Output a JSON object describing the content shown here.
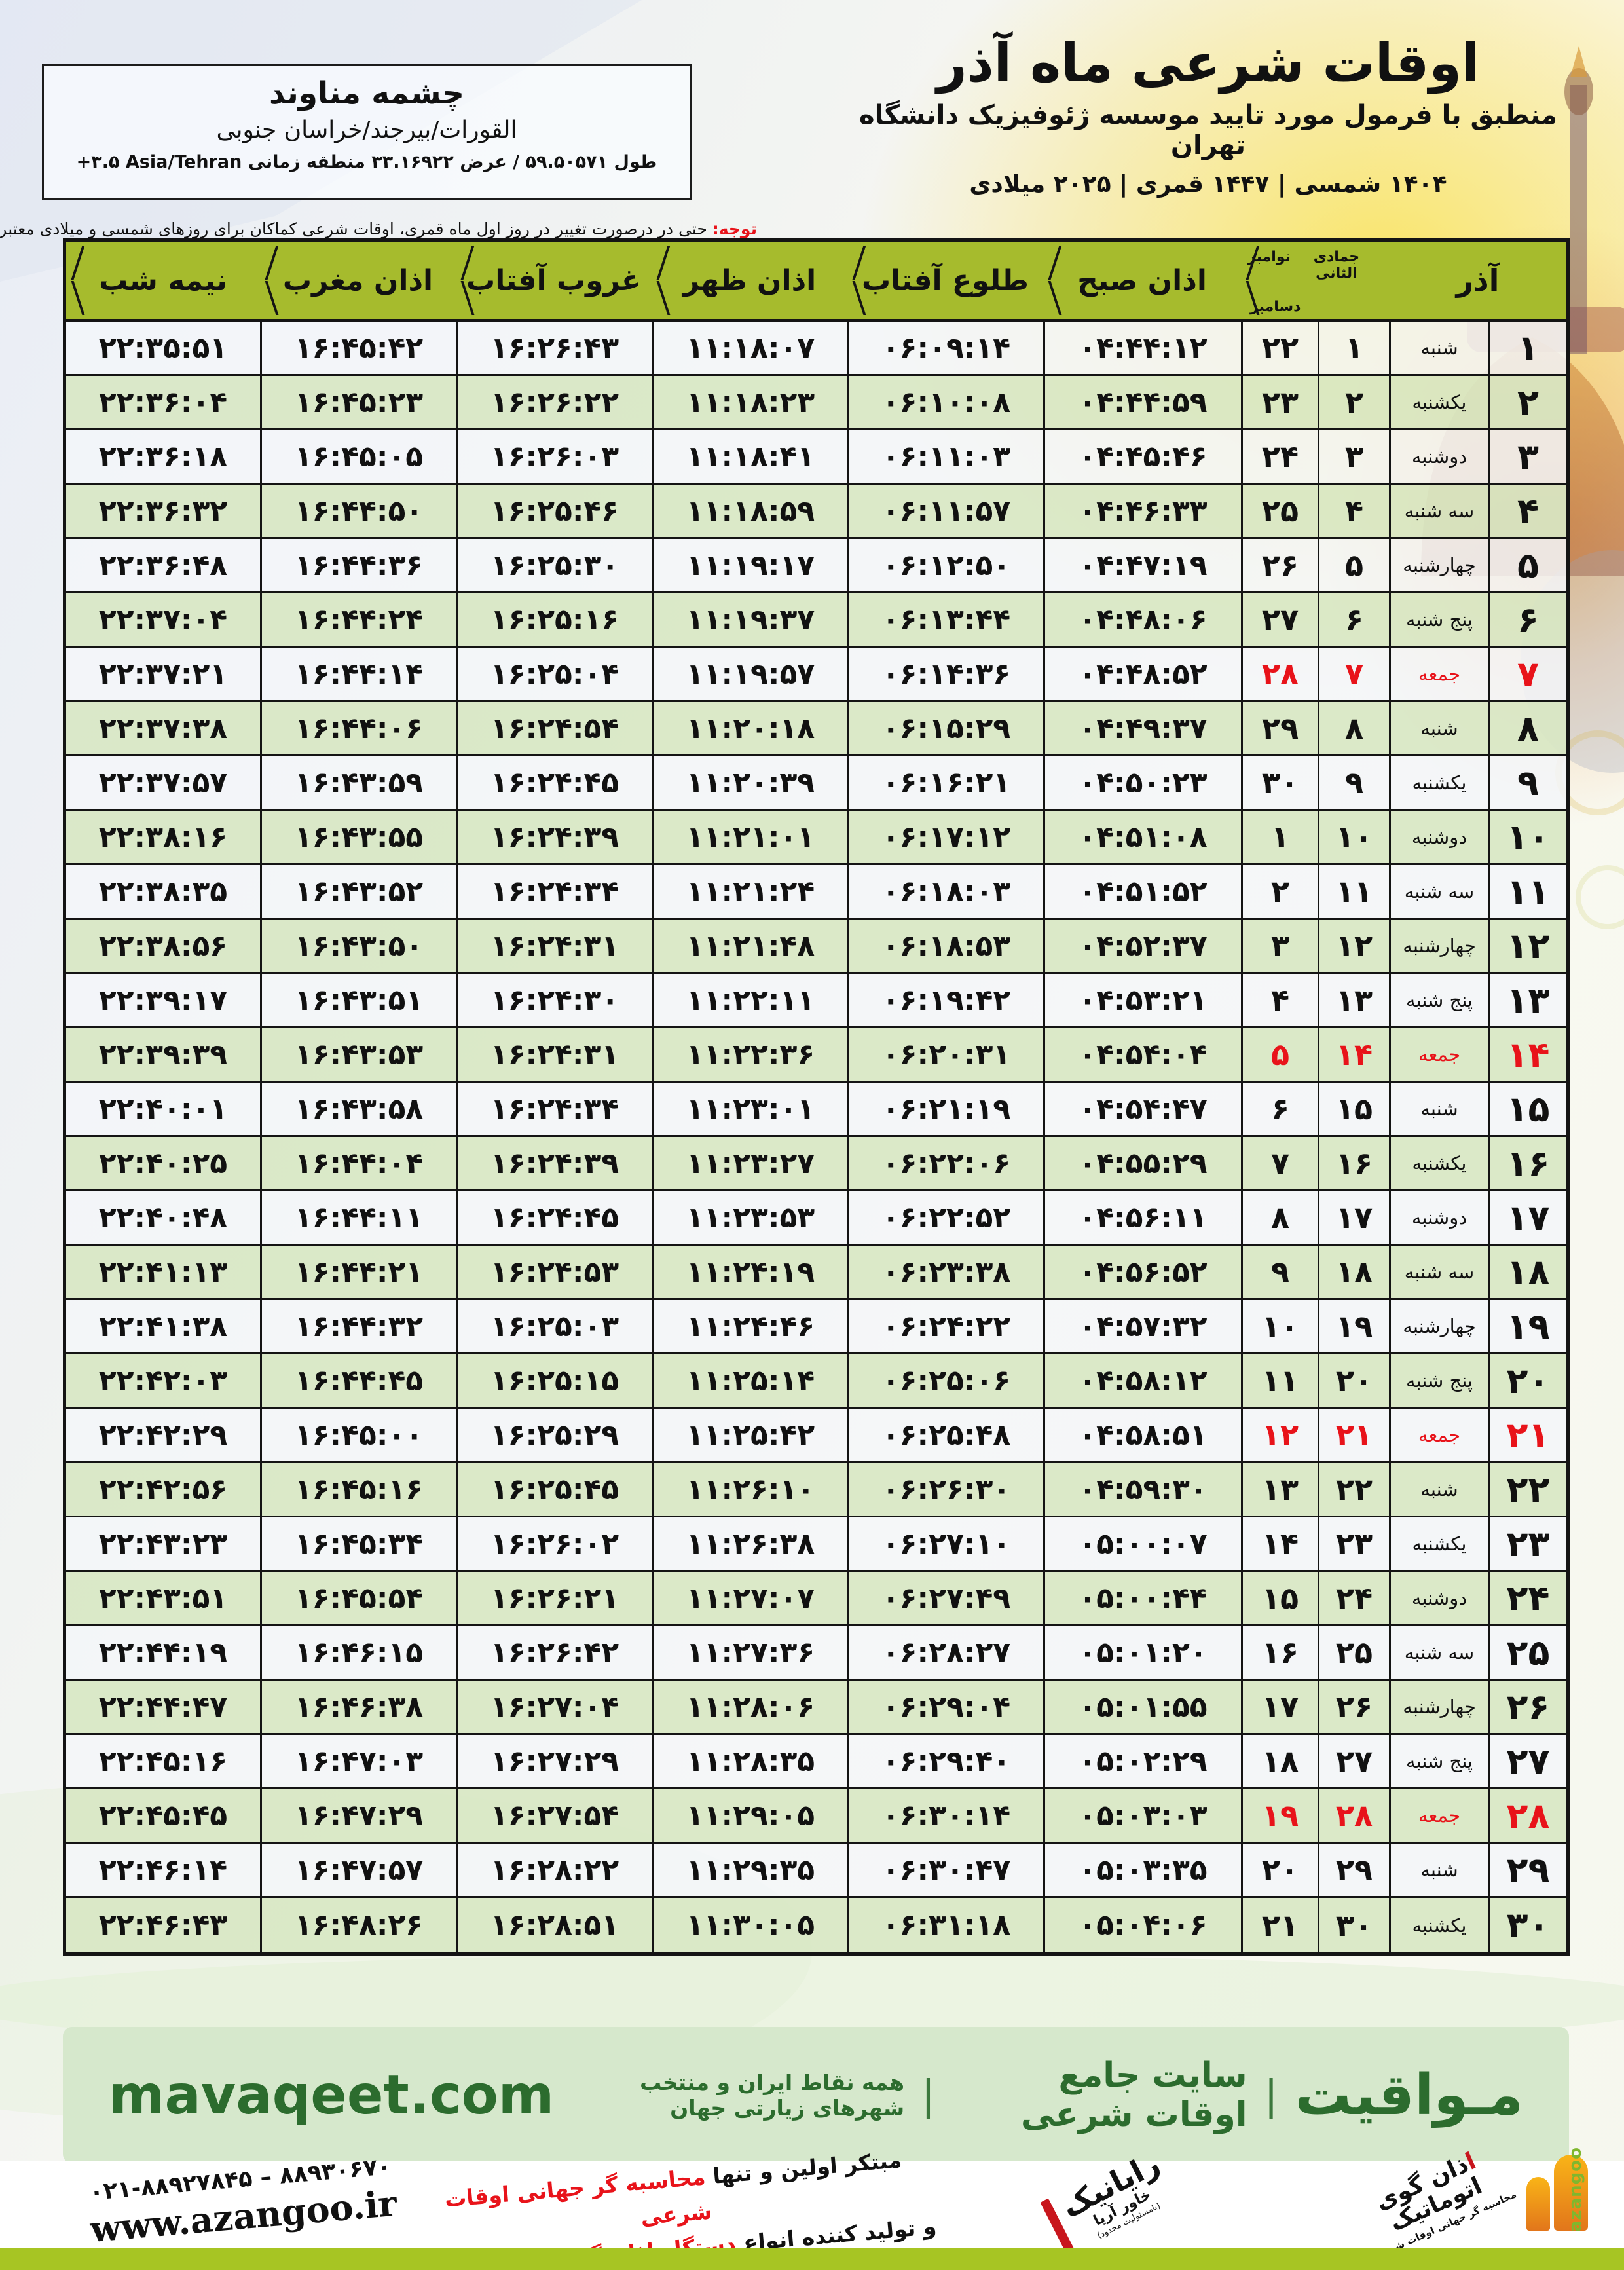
{
  "colors": {
    "red": "#e8131a",
    "olive": "#a6bb2d",
    "band_bg": "#d6e8cc",
    "band_text": "#2c6c2e",
    "bottom_band": "#a7c523",
    "row_green": "#d9e8c7",
    "border": "#141414"
  },
  "location_card": {
    "name": "چشمه مناوند",
    "region": "القورات/بیرجند/خراسان جنوبی",
    "coords": "طول ۵۹.۵۰۵۷۱ / عرض ۳۳.۱۶۹۲۲ منطقه زمانی ‎+۳.۵‎ Asia/Tehran"
  },
  "header": {
    "title": "اوقات شرعی ماه آذر",
    "subtitle": "منطبق با فرمول مورد تایید موسسه ژئوفیزیک دانشگاه تهران",
    "years": "۱۴۰۴ شمسی | ۱۴۴۷ قمری | ۲۰۲۵ میلادی"
  },
  "note": {
    "label": "توجه:",
    "text": " حتی در درصورت تغییر در روز اول ماه قمری، اوقات شرعی کماکان برای روزهای شمسی و میلادی معتبر است."
  },
  "table": {
    "headers": {
      "day": "آذر",
      "hijri_month": "جمادی الثانی",
      "greg_month_top": "نوامبر",
      "greg_month_bottom": "دسامبر",
      "fajr": "اذان صبح",
      "sunrise": "طلوع آفتاب",
      "dhuhr": "اذان ظهر",
      "sunset": "غروب آفتاب",
      "maghrib": "اذان مغرب",
      "midnight": "نیمه شب"
    },
    "rows": [
      {
        "day": "۱",
        "weekday": "شنبه",
        "hijri": "۱",
        "greg": "۲۲",
        "fajr": "۰۴:۴۴:۱۲",
        "sunrise": "۰۶:۰۹:۱۴",
        "dhuhr": "۱۱:۱۸:۰۷",
        "sunset": "۱۶:۲۶:۴۳",
        "maghrib": "۱۶:۴۵:۴۲",
        "midnight": "۲۲:۳۵:۵۱",
        "friday": false
      },
      {
        "day": "۲",
        "weekday": "یکشنبه",
        "hijri": "۲",
        "greg": "۲۳",
        "fajr": "۰۴:۴۴:۵۹",
        "sunrise": "۰۶:۱۰:۰۸",
        "dhuhr": "۱۱:۱۸:۲۳",
        "sunset": "۱۶:۲۶:۲۲",
        "maghrib": "۱۶:۴۵:۲۳",
        "midnight": "۲۲:۳۶:۰۴",
        "friday": false
      },
      {
        "day": "۳",
        "weekday": "دوشنبه",
        "hijri": "۳",
        "greg": "۲۴",
        "fajr": "۰۴:۴۵:۴۶",
        "sunrise": "۰۶:۱۱:۰۳",
        "dhuhr": "۱۱:۱۸:۴۱",
        "sunset": "۱۶:۲۶:۰۳",
        "maghrib": "۱۶:۴۵:۰۵",
        "midnight": "۲۲:۳۶:۱۸",
        "friday": false
      },
      {
        "day": "۴",
        "weekday": "سه شنبه",
        "hijri": "۴",
        "greg": "۲۵",
        "fajr": "۰۴:۴۶:۳۳",
        "sunrise": "۰۶:۱۱:۵۷",
        "dhuhr": "۱۱:۱۸:۵۹",
        "sunset": "۱۶:۲۵:۴۶",
        "maghrib": "۱۶:۴۴:۵۰",
        "midnight": "۲۲:۳۶:۳۲",
        "friday": false
      },
      {
        "day": "۵",
        "weekday": "چهارشنبه",
        "hijri": "۵",
        "greg": "۲۶",
        "fajr": "۰۴:۴۷:۱۹",
        "sunrise": "۰۶:۱۲:۵۰",
        "dhuhr": "۱۱:۱۹:۱۷",
        "sunset": "۱۶:۲۵:۳۰",
        "maghrib": "۱۶:۴۴:۳۶",
        "midnight": "۲۲:۳۶:۴۸",
        "friday": false
      },
      {
        "day": "۶",
        "weekday": "پنج شنبه",
        "hijri": "۶",
        "greg": "۲۷",
        "fajr": "۰۴:۴۸:۰۶",
        "sunrise": "۰۶:۱۳:۴۴",
        "dhuhr": "۱۱:۱۹:۳۷",
        "sunset": "۱۶:۲۵:۱۶",
        "maghrib": "۱۶:۴۴:۲۴",
        "midnight": "۲۲:۳۷:۰۴",
        "friday": false
      },
      {
        "day": "۷",
        "weekday": "جمعه",
        "hijri": "۷",
        "greg": "۲۸",
        "fajr": "۰۴:۴۸:۵۲",
        "sunrise": "۰۶:۱۴:۳۶",
        "dhuhr": "۱۱:۱۹:۵۷",
        "sunset": "۱۶:۲۵:۰۴",
        "maghrib": "۱۶:۴۴:۱۴",
        "midnight": "۲۲:۳۷:۲۱",
        "friday": true
      },
      {
        "day": "۸",
        "weekday": "شنبه",
        "hijri": "۸",
        "greg": "۲۹",
        "fajr": "۰۴:۴۹:۳۷",
        "sunrise": "۰۶:۱۵:۲۹",
        "dhuhr": "۱۱:۲۰:۱۸",
        "sunset": "۱۶:۲۴:۵۴",
        "maghrib": "۱۶:۴۴:۰۶",
        "midnight": "۲۲:۳۷:۳۸",
        "friday": false
      },
      {
        "day": "۹",
        "weekday": "یکشنبه",
        "hijri": "۹",
        "greg": "۳۰",
        "fajr": "۰۴:۵۰:۲۳",
        "sunrise": "۰۶:۱۶:۲۱",
        "dhuhr": "۱۱:۲۰:۳۹",
        "sunset": "۱۶:۲۴:۴۵",
        "maghrib": "۱۶:۴۳:۵۹",
        "midnight": "۲۲:۳۷:۵۷",
        "friday": false
      },
      {
        "day": "۱۰",
        "weekday": "دوشنبه",
        "hijri": "۱۰",
        "greg": "۱",
        "fajr": "۰۴:۵۱:۰۸",
        "sunrise": "۰۶:۱۷:۱۲",
        "dhuhr": "۱۱:۲۱:۰۱",
        "sunset": "۱۶:۲۴:۳۹",
        "maghrib": "۱۶:۴۳:۵۵",
        "midnight": "۲۲:۳۸:۱۶",
        "friday": false
      },
      {
        "day": "۱۱",
        "weekday": "سه شنبه",
        "hijri": "۱۱",
        "greg": "۲",
        "fajr": "۰۴:۵۱:۵۲",
        "sunrise": "۰۶:۱۸:۰۳",
        "dhuhr": "۱۱:۲۱:۲۴",
        "sunset": "۱۶:۲۴:۳۴",
        "maghrib": "۱۶:۴۳:۵۲",
        "midnight": "۲۲:۳۸:۳۵",
        "friday": false
      },
      {
        "day": "۱۲",
        "weekday": "چهارشنبه",
        "hijri": "۱۲",
        "greg": "۳",
        "fajr": "۰۴:۵۲:۳۷",
        "sunrise": "۰۶:۱۸:۵۳",
        "dhuhr": "۱۱:۲۱:۴۸",
        "sunset": "۱۶:۲۴:۳۱",
        "maghrib": "۱۶:۴۳:۵۰",
        "midnight": "۲۲:۳۸:۵۶",
        "friday": false
      },
      {
        "day": "۱۳",
        "weekday": "پنج شنبه",
        "hijri": "۱۳",
        "greg": "۴",
        "fajr": "۰۴:۵۳:۲۱",
        "sunrise": "۰۶:۱۹:۴۲",
        "dhuhr": "۱۱:۲۲:۱۱",
        "sunset": "۱۶:۲۴:۳۰",
        "maghrib": "۱۶:۴۳:۵۱",
        "midnight": "۲۲:۳۹:۱۷",
        "friday": false
      },
      {
        "day": "۱۴",
        "weekday": "جمعه",
        "hijri": "۱۴",
        "greg": "۵",
        "fajr": "۰۴:۵۴:۰۴",
        "sunrise": "۰۶:۲۰:۳۱",
        "dhuhr": "۱۱:۲۲:۳۶",
        "sunset": "۱۶:۲۴:۳۱",
        "maghrib": "۱۶:۴۳:۵۳",
        "midnight": "۲۲:۳۹:۳۹",
        "friday": true
      },
      {
        "day": "۱۵",
        "weekday": "شنبه",
        "hijri": "۱۵",
        "greg": "۶",
        "fajr": "۰۴:۵۴:۴۷",
        "sunrise": "۰۶:۲۱:۱۹",
        "dhuhr": "۱۱:۲۳:۰۱",
        "sunset": "۱۶:۲۴:۳۴",
        "maghrib": "۱۶:۴۳:۵۸",
        "midnight": "۲۲:۴۰:۰۱",
        "friday": false
      },
      {
        "day": "۱۶",
        "weekday": "یکشنبه",
        "hijri": "۱۶",
        "greg": "۷",
        "fajr": "۰۴:۵۵:۲۹",
        "sunrise": "۰۶:۲۲:۰۶",
        "dhuhr": "۱۱:۲۳:۲۷",
        "sunset": "۱۶:۲۴:۳۹",
        "maghrib": "۱۶:۴۴:۰۴",
        "midnight": "۲۲:۴۰:۲۵",
        "friday": false
      },
      {
        "day": "۱۷",
        "weekday": "دوشنبه",
        "hijri": "۱۷",
        "greg": "۸",
        "fajr": "۰۴:۵۶:۱۱",
        "sunrise": "۰۶:۲۲:۵۲",
        "dhuhr": "۱۱:۲۳:۵۳",
        "sunset": "۱۶:۲۴:۴۵",
        "maghrib": "۱۶:۴۴:۱۱",
        "midnight": "۲۲:۴۰:۴۸",
        "friday": false
      },
      {
        "day": "۱۸",
        "weekday": "سه شنبه",
        "hijri": "۱۸",
        "greg": "۹",
        "fajr": "۰۴:۵۶:۵۲",
        "sunrise": "۰۶:۲۳:۳۸",
        "dhuhr": "۱۱:۲۴:۱۹",
        "sunset": "۱۶:۲۴:۵۳",
        "maghrib": "۱۶:۴۴:۲۱",
        "midnight": "۲۲:۴۱:۱۳",
        "friday": false
      },
      {
        "day": "۱۹",
        "weekday": "چهارشنبه",
        "hijri": "۱۹",
        "greg": "۱۰",
        "fajr": "۰۴:۵۷:۳۲",
        "sunrise": "۰۶:۲۴:۲۲",
        "dhuhr": "۱۱:۲۴:۴۶",
        "sunset": "۱۶:۲۵:۰۳",
        "maghrib": "۱۶:۴۴:۳۲",
        "midnight": "۲۲:۴۱:۳۸",
        "friday": false
      },
      {
        "day": "۲۰",
        "weekday": "پنج شنبه",
        "hijri": "۲۰",
        "greg": "۱۱",
        "fajr": "۰۴:۵۸:۱۲",
        "sunrise": "۰۶:۲۵:۰۶",
        "dhuhr": "۱۱:۲۵:۱۴",
        "sunset": "۱۶:۲۵:۱۵",
        "maghrib": "۱۶:۴۴:۴۵",
        "midnight": "۲۲:۴۲:۰۳",
        "friday": false
      },
      {
        "day": "۲۱",
        "weekday": "جمعه",
        "hijri": "۲۱",
        "greg": "۱۲",
        "fajr": "۰۴:۵۸:۵۱",
        "sunrise": "۰۶:۲۵:۴۸",
        "dhuhr": "۱۱:۲۵:۴۲",
        "sunset": "۱۶:۲۵:۲۹",
        "maghrib": "۱۶:۴۵:۰۰",
        "midnight": "۲۲:۴۲:۲۹",
        "friday": true
      },
      {
        "day": "۲۲",
        "weekday": "شنبه",
        "hijri": "۲۲",
        "greg": "۱۳",
        "fajr": "۰۴:۵۹:۳۰",
        "sunrise": "۰۶:۲۶:۳۰",
        "dhuhr": "۱۱:۲۶:۱۰",
        "sunset": "۱۶:۲۵:۴۵",
        "maghrib": "۱۶:۴۵:۱۶",
        "midnight": "۲۲:۴۲:۵۶",
        "friday": false
      },
      {
        "day": "۲۳",
        "weekday": "یکشنبه",
        "hijri": "۲۳",
        "greg": "۱۴",
        "fajr": "۰۵:۰۰:۰۷",
        "sunrise": "۰۶:۲۷:۱۰",
        "dhuhr": "۱۱:۲۶:۳۸",
        "sunset": "۱۶:۲۶:۰۲",
        "maghrib": "۱۶:۴۵:۳۴",
        "midnight": "۲۲:۴۳:۲۳",
        "friday": false
      },
      {
        "day": "۲۴",
        "weekday": "دوشنبه",
        "hijri": "۲۴",
        "greg": "۱۵",
        "fajr": "۰۵:۰۰:۴۴",
        "sunrise": "۰۶:۲۷:۴۹",
        "dhuhr": "۱۱:۲۷:۰۷",
        "sunset": "۱۶:۲۶:۲۱",
        "maghrib": "۱۶:۴۵:۵۴",
        "midnight": "۲۲:۴۳:۵۱",
        "friday": false
      },
      {
        "day": "۲۵",
        "weekday": "سه شنبه",
        "hijri": "۲۵",
        "greg": "۱۶",
        "fajr": "۰۵:۰۱:۲۰",
        "sunrise": "۰۶:۲۸:۲۷",
        "dhuhr": "۱۱:۲۷:۳۶",
        "sunset": "۱۶:۲۶:۴۲",
        "maghrib": "۱۶:۴۶:۱۵",
        "midnight": "۲۲:۴۴:۱۹",
        "friday": false
      },
      {
        "day": "۲۶",
        "weekday": "چهارشنبه",
        "hijri": "۲۶",
        "greg": "۱۷",
        "fajr": "۰۵:۰۱:۵۵",
        "sunrise": "۰۶:۲۹:۰۴",
        "dhuhr": "۱۱:۲۸:۰۶",
        "sunset": "۱۶:۲۷:۰۴",
        "maghrib": "۱۶:۴۶:۳۸",
        "midnight": "۲۲:۴۴:۴۷",
        "friday": false
      },
      {
        "day": "۲۷",
        "weekday": "پنج شنبه",
        "hijri": "۲۷",
        "greg": "۱۸",
        "fajr": "۰۵:۰۲:۲۹",
        "sunrise": "۰۶:۲۹:۴۰",
        "dhuhr": "۱۱:۲۸:۳۵",
        "sunset": "۱۶:۲۷:۲۹",
        "maghrib": "۱۶:۴۷:۰۳",
        "midnight": "۲۲:۴۵:۱۶",
        "friday": false
      },
      {
        "day": "۲۸",
        "weekday": "جمعه",
        "hijri": "۲۸",
        "greg": "۱۹",
        "fajr": "۰۵:۰۳:۰۳",
        "sunrise": "۰۶:۳۰:۱۴",
        "dhuhr": "۱۱:۲۹:۰۵",
        "sunset": "۱۶:۲۷:۵۴",
        "maghrib": "۱۶:۴۷:۲۹",
        "midnight": "۲۲:۴۵:۴۵",
        "friday": true
      },
      {
        "day": "۲۹",
        "weekday": "شنبه",
        "hijri": "۲۹",
        "greg": "۲۰",
        "fajr": "۰۵:۰۳:۳۵",
        "sunrise": "۰۶:۳۰:۴۷",
        "dhuhr": "۱۱:۲۹:۳۵",
        "sunset": "۱۶:۲۸:۲۲",
        "maghrib": "۱۶:۴۷:۵۷",
        "midnight": "۲۲:۴۶:۱۴",
        "friday": false
      },
      {
        "day": "۳۰",
        "weekday": "یکشنبه",
        "hijri": "۳۰",
        "greg": "۲۱",
        "fajr": "۰۵:۰۴:۰۶",
        "sunrise": "۰۶:۳۱:۱۸",
        "dhuhr": "۱۱:۳۰:۰۵",
        "sunset": "۱۶:۲۸:۵۱",
        "maghrib": "۱۶:۴۸:۲۶",
        "midnight": "۲۲:۴۶:۴۳",
        "friday": false
      }
    ]
  },
  "footer_band": {
    "site_name": "مـواقیت",
    "separator": "|",
    "site_desc": "سایت جامع اوقات شرعی",
    "site_scope": "همه نقاط ایران و منتخب شهرهای زیارتی جهان",
    "url": "mavaqeet.com"
  },
  "bottom": {
    "phone": "۰۲۱-۸۸۹۲۷۸۴۵ – ۸۸۹۳۰۶۷۰",
    "website": "www.azangoo.ir",
    "tagline_black_1": "مبتکر اولین و تنها ",
    "tagline_red_1": "محاسبه گر جهانی اوقات شرعی",
    "tagline_black_2": "و تولید کننده انواع ",
    "tagline_red_2": "دستگاه اذان گوی تمام خودکار ماهواره ای",
    "rayanik_name": "رایانیک",
    "rayanik_sub": "خاور آریا",
    "rayanik_tiny": "(بامسئولیت محدود)",
    "azangoo_title": "اذان گوی اتوماتیک",
    "azangoo_sub": "محاسبه گر جهانی اوقات شرعی",
    "azangoo_latin": "azangoo"
  }
}
